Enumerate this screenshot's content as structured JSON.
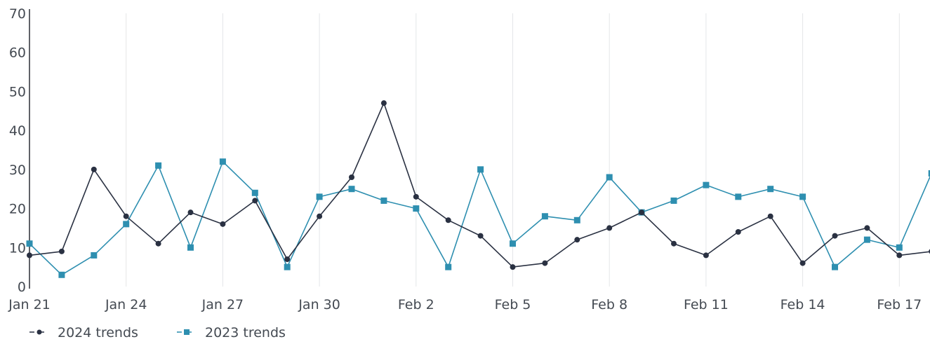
{
  "chart_data": {
    "type": "line",
    "x": [
      "Jan 21",
      "Jan 22",
      "Jan 23",
      "Jan 24",
      "Jan 25",
      "Jan 26",
      "Jan 27",
      "Jan 28",
      "Jan 29",
      "Jan 30",
      "Jan 31",
      "Feb 1",
      "Feb 2",
      "Feb 3",
      "Feb 4",
      "Feb 5",
      "Feb 6",
      "Feb 7",
      "Feb 8",
      "Feb 9",
      "Feb 10",
      "Feb 11",
      "Feb 12",
      "Feb 13",
      "Feb 14",
      "Feb 15",
      "Feb 16",
      "Feb 17",
      "Feb 18"
    ],
    "x_tick_labels": [
      "Jan 21",
      "Jan 24",
      "Jan 27",
      "Jan 30",
      "Feb 2",
      "Feb 5",
      "Feb 8",
      "Feb 11",
      "Feb 14",
      "Feb 17"
    ],
    "ylim": [
      0,
      70
    ],
    "y_ticks": [
      0,
      10,
      20,
      30,
      40,
      50,
      60,
      70
    ],
    "grid": "vertical",
    "legend_position": "bottom-left",
    "series": [
      {
        "name": "2024 trends",
        "color": "#2a3142",
        "marker": "circle",
        "values": [
          8,
          9,
          30,
          18,
          11,
          19,
          16,
          22,
          7,
          18,
          28,
          47,
          23,
          17,
          13,
          5,
          6,
          12,
          15,
          19,
          11,
          8,
          14,
          18,
          6,
          13,
          15,
          8,
          9
        ]
      },
      {
        "name": "2023 trends",
        "color": "#2e8fb0",
        "marker": "square",
        "values": [
          11,
          3,
          8,
          16,
          31,
          10,
          32,
          24,
          5,
          23,
          25,
          22,
          20,
          5,
          30,
          11,
          18,
          17,
          28,
          19,
          22,
          26,
          23,
          25,
          23,
          5,
          12,
          10,
          29
        ]
      }
    ]
  }
}
